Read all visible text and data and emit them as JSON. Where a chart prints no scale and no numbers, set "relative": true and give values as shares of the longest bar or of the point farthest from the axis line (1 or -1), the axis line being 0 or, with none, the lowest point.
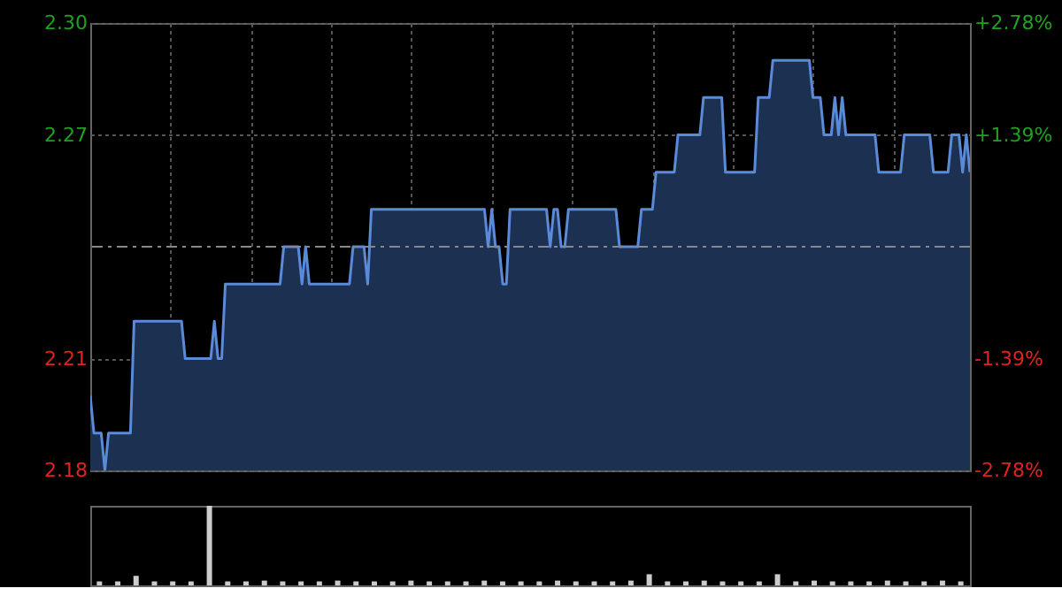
{
  "chart_data": [
    {
      "type": "area",
      "categories": [
        null,
        null,
        null,
        null,
        null,
        null,
        null,
        null,
        null,
        null,
        null,
        null,
        null,
        null,
        null,
        null,
        null,
        null,
        null,
        null,
        null,
        null,
        null,
        null,
        null,
        null,
        null,
        null,
        null,
        null,
        null,
        null,
        null,
        null,
        null,
        null,
        null,
        null,
        null,
        null,
        null,
        null,
        null,
        null,
        null,
        null,
        null,
        null,
        null,
        null,
        null,
        null,
        null,
        null,
        null,
        null,
        null,
        null,
        null,
        null,
        null,
        null,
        null,
        null,
        null,
        null,
        null,
        null,
        null,
        null,
        null,
        null,
        null,
        null,
        null,
        null,
        null,
        null,
        null,
        null,
        null,
        null,
        null,
        null,
        null,
        null,
        null,
        null,
        null,
        null,
        null,
        null,
        null,
        null,
        null,
        null,
        null,
        null,
        null,
        null,
        null,
        null,
        null,
        null,
        null,
        null,
        null,
        null,
        null,
        null,
        null,
        null,
        null,
        null,
        null,
        null,
        null,
        null,
        null,
        null,
        null,
        null,
        null,
        null,
        null,
        null,
        null,
        null,
        null,
        null,
        null,
        null,
        null,
        null,
        null,
        null,
        null,
        null,
        null,
        null,
        null,
        null,
        null,
        null,
        null,
        null,
        null,
        null,
        null,
        null,
        null,
        null,
        null,
        null,
        null,
        null,
        null,
        null,
        null,
        null,
        null,
        null,
        null,
        null,
        null,
        null,
        null,
        null,
        null,
        null,
        null,
        null,
        null,
        null,
        null,
        null,
        null,
        null,
        null,
        null,
        null,
        null,
        null,
        null,
        null,
        null,
        null,
        null,
        null,
        null,
        null,
        null,
        null,
        null,
        null,
        null,
        null,
        null,
        null,
        null,
        null,
        null,
        null,
        null,
        null,
        null,
        null,
        null,
        null,
        null,
        null,
        null,
        null,
        null,
        null,
        null,
        null,
        null,
        null,
        null,
        null,
        null,
        null,
        null,
        null,
        null,
        null,
        null,
        null,
        null,
        null,
        null,
        null,
        null,
        null,
        null,
        null,
        null,
        null,
        null,
        null,
        null
      ],
      "series": [
        {
          "color": "#5b8bd8",
          "values": [
            2.2,
            2.19,
            2.19,
            2.19,
            2.18,
            2.19,
            2.19,
            2.19,
            2.19,
            2.19,
            2.19,
            2.19,
            2.22,
            2.22,
            2.22,
            2.22,
            2.22,
            2.22,
            2.22,
            2.22,
            2.22,
            2.22,
            2.22,
            2.22,
            2.22,
            2.22,
            2.21,
            2.21,
            2.21,
            2.21,
            2.21,
            2.21,
            2.21,
            2.21,
            2.22,
            2.21,
            2.21,
            2.23,
            2.23,
            2.23,
            2.23,
            2.23,
            2.23,
            2.23,
            2.23,
            2.23,
            2.23,
            2.23,
            2.23,
            2.23,
            2.23,
            2.23,
            2.23,
            2.24,
            2.24,
            2.24,
            2.24,
            2.24,
            2.23,
            2.24,
            2.23,
            2.23,
            2.23,
            2.23,
            2.23,
            2.23,
            2.23,
            2.23,
            2.23,
            2.23,
            2.23,
            2.23,
            2.24,
            2.24,
            2.24,
            2.24,
            2.23,
            2.25,
            2.25,
            2.25,
            2.25,
            2.25,
            2.25,
            2.25,
            2.25,
            2.25,
            2.25,
            2.25,
            2.25,
            2.25,
            2.25,
            2.25,
            2.25,
            2.25,
            2.25,
            2.25,
            2.25,
            2.25,
            2.25,
            2.25,
            2.25,
            2.25,
            2.25,
            2.25,
            2.25,
            2.25,
            2.25,
            2.25,
            2.25,
            2.24,
            2.25,
            2.24,
            2.24,
            2.23,
            2.23,
            2.25,
            2.25,
            2.25,
            2.25,
            2.25,
            2.25,
            2.25,
            2.25,
            2.25,
            2.25,
            2.25,
            2.24,
            2.25,
            2.25,
            2.24,
            2.24,
            2.25,
            2.25,
            2.25,
            2.25,
            2.25,
            2.25,
            2.25,
            2.25,
            2.25,
            2.25,
            2.25,
            2.25,
            2.25,
            2.25,
            2.24,
            2.24,
            2.24,
            2.24,
            2.24,
            2.24,
            2.25,
            2.25,
            2.25,
            2.25,
            2.26,
            2.26,
            2.26,
            2.26,
            2.26,
            2.26,
            2.27,
            2.27,
            2.27,
            2.27,
            2.27,
            2.27,
            2.27,
            2.28,
            2.28,
            2.28,
            2.28,
            2.28,
            2.28,
            2.26,
            2.26,
            2.26,
            2.26,
            2.26,
            2.26,
            2.26,
            2.26,
            2.26,
            2.28,
            2.28,
            2.28,
            2.28,
            2.29,
            2.29,
            2.29,
            2.29,
            2.29,
            2.29,
            2.29,
            2.29,
            2.29,
            2.29,
            2.29,
            2.28,
            2.28,
            2.28,
            2.27,
            2.27,
            2.27,
            2.28,
            2.27,
            2.28,
            2.27,
            2.27,
            2.27,
            2.27,
            2.27,
            2.27,
            2.27,
            2.27,
            2.27,
            2.26,
            2.26,
            2.26,
            2.26,
            2.26,
            2.26,
            2.26,
            2.27,
            2.27,
            2.27,
            2.27,
            2.27,
            2.27,
            2.27,
            2.27,
            2.26,
            2.26,
            2.26,
            2.26,
            2.26,
            2.27,
            2.27,
            2.27,
            2.26,
            2.27,
            2.26
          ]
        }
      ],
      "ylim": [
        2.18,
        2.3
      ],
      "yticks": [
        {
          "value": 2.18,
          "label": "2.18"
        },
        {
          "value": 2.21,
          "label": "2.21"
        },
        {
          "value": 2.27,
          "label": "2.27"
        },
        {
          "value": 2.3,
          "label": "2.30"
        }
      ],
      "y2lim": [
        -2.78,
        2.78
      ],
      "y2ticks": [
        {
          "value": -2.78,
          "label": "-2.78%"
        },
        {
          "value": -1.39,
          "label": "-1.39%"
        },
        {
          "value": 1.39,
          "label": "+1.39%"
        },
        {
          "value": 2.78,
          "label": "+2.78%"
        }
      ],
      "grid": true,
      "ref_lines": [
        {
          "axis": "y",
          "value": 2.24,
          "color": "#888888",
          "line_style": "dashed"
        }
      ]
    },
    {
      "type": "bar",
      "relative": true,
      "color": "#cccccc",
      "categories": [
        null,
        null,
        null,
        null,
        null,
        null,
        null,
        null,
        null,
        null,
        null,
        null,
        null,
        null,
        null,
        null,
        null,
        null,
        null,
        null,
        null,
        null,
        null,
        null,
        null,
        null,
        null,
        null,
        null,
        null,
        null,
        null,
        null,
        null,
        null,
        null,
        null,
        null,
        null,
        null,
        null,
        null,
        null,
        null,
        null,
        null,
        null,
        null
      ],
      "values": [
        0.05,
        0.05,
        0.12,
        0.05,
        0.05,
        0.05,
        1,
        0.05,
        0.05,
        0.06,
        0.05,
        0.05,
        0.05,
        0.06,
        0.05,
        0.05,
        0.05,
        0.06,
        0.05,
        0.05,
        0.05,
        0.06,
        0.05,
        0.05,
        0.05,
        0.06,
        0.05,
        0.05,
        0.05,
        0.06,
        0.14,
        0.05,
        0.05,
        0.06,
        0.05,
        0.05,
        0.05,
        0.14,
        0.05,
        0.06,
        0.05,
        0.05,
        0.05,
        0.06,
        0.05,
        0.05,
        0.06,
        0.05
      ]
    }
  ]
}
